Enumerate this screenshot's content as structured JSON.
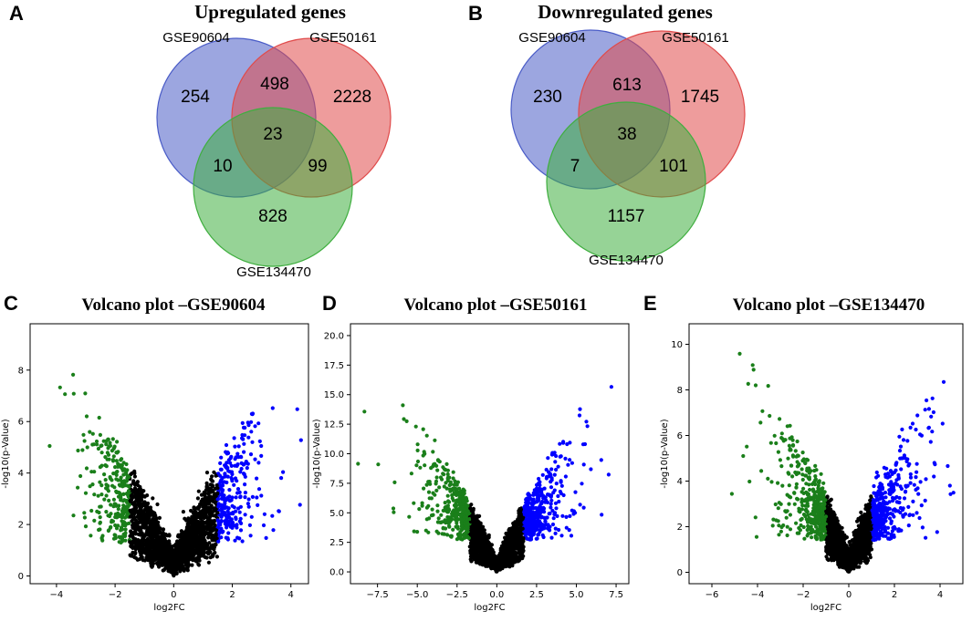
{
  "panels": {
    "A": "A",
    "B": "B",
    "C": "C",
    "D": "D",
    "E": "E"
  },
  "chart_data": [
    {
      "id": "A",
      "type": "venn3",
      "title": "Upregulated genes",
      "sets": [
        {
          "name": "GSE90604",
          "color": "#4a5cc7"
        },
        {
          "name": "GSE50161",
          "color": "#e04b4b"
        },
        {
          "name": "GSE134470",
          "color": "#3fae3f"
        }
      ],
      "regions": {
        "a_only": "254",
        "b_only": "2228",
        "c_only": "828",
        "ab": "498",
        "ac": "10",
        "bc": "99",
        "abc": "23"
      }
    },
    {
      "id": "B",
      "type": "venn3",
      "title": "Downregulated genes",
      "sets": [
        {
          "name": "GSE90604",
          "color": "#4a5cc7"
        },
        {
          "name": "GSE50161",
          "color": "#e04b4b"
        },
        {
          "name": "GSE134470",
          "color": "#3fae3f"
        }
      ],
      "regions": {
        "a_only": "230",
        "b_only": "1745",
        "c_only": "1157",
        "ab": "613",
        "ac": "7",
        "bc": "101",
        "abc": "38"
      }
    },
    {
      "id": "C",
      "type": "scatter",
      "title": "Volcano plot –GSE90604",
      "xlabel": "log2FC",
      "ylabel": "-log10(p-Value)",
      "xlim": [
        -4.9,
        4.6
      ],
      "ylim": [
        -0.3,
        9.8
      ],
      "xticks": [
        -4,
        -2,
        0,
        2,
        4
      ],
      "xtick_labels": [
        "−4",
        "−2",
        "0",
        "2",
        "4"
      ],
      "yticks": [
        0,
        2,
        4,
        6,
        8
      ],
      "ytick_labels": [
        "0",
        "2",
        "4",
        "6",
        "8"
      ],
      "fc_threshold": 1.5,
      "x_spread": 1.25,
      "y_peak": 9.4,
      "series_colors": {
        "down": "#1a7f1a",
        "up": "#0000ff",
        "ns": "#000000"
      }
    },
    {
      "id": "D",
      "type": "scatter",
      "title": "Volcano plot –GSE50161",
      "xlabel": "log2FC",
      "ylabel": "-log10(p-Value)",
      "xlim": [
        -9.2,
        8.3
      ],
      "ylim": [
        -1.0,
        21.0
      ],
      "xticks": [
        -7.5,
        -5.0,
        -2.5,
        0.0,
        2.5,
        5.0,
        7.5
      ],
      "xtick_labels": [
        "−7.5",
        "−5.0",
        "−2.5",
        "0.0",
        "2.5",
        "5.0",
        "7.5"
      ],
      "yticks": [
        0.0,
        2.5,
        5.0,
        7.5,
        10.0,
        12.5,
        15.0,
        17.5,
        20.0
      ],
      "ytick_labels": [
        "0.0",
        "2.5",
        "5.0",
        "7.5",
        "10.0",
        "12.5",
        "15.0",
        "17.5",
        "20.0"
      ],
      "fc_threshold": 1.7,
      "x_spread": 2.4,
      "y_peak": 20.0,
      "series_colors": {
        "down": "#1a7f1a",
        "up": "#0000ff",
        "ns": "#000000"
      }
    },
    {
      "id": "E",
      "type": "scatter",
      "title": "Volcano plot –GSE134470",
      "xlabel": "log2FC",
      "ylabel": "-log10(p-Value)",
      "xlim": [
        -7.0,
        5.0
      ],
      "ylim": [
        -0.5,
        10.9
      ],
      "xticks": [
        -6,
        -4,
        -2,
        0,
        2,
        4
      ],
      "xtick_labels": [
        "−6",
        "−4",
        "−2",
        "0",
        "2",
        "4"
      ],
      "yticks": [
        0,
        2,
        4,
        6,
        8,
        10
      ],
      "ytick_labels": [
        "0",
        "2",
        "4",
        "6",
        "8",
        "10"
      ],
      "fc_threshold": 1.0,
      "x_spread": 1.6,
      "y_peak": 10.4,
      "series_colors": {
        "down": "#1a7f1a",
        "up": "#0000ff",
        "ns": "#000000"
      }
    }
  ]
}
